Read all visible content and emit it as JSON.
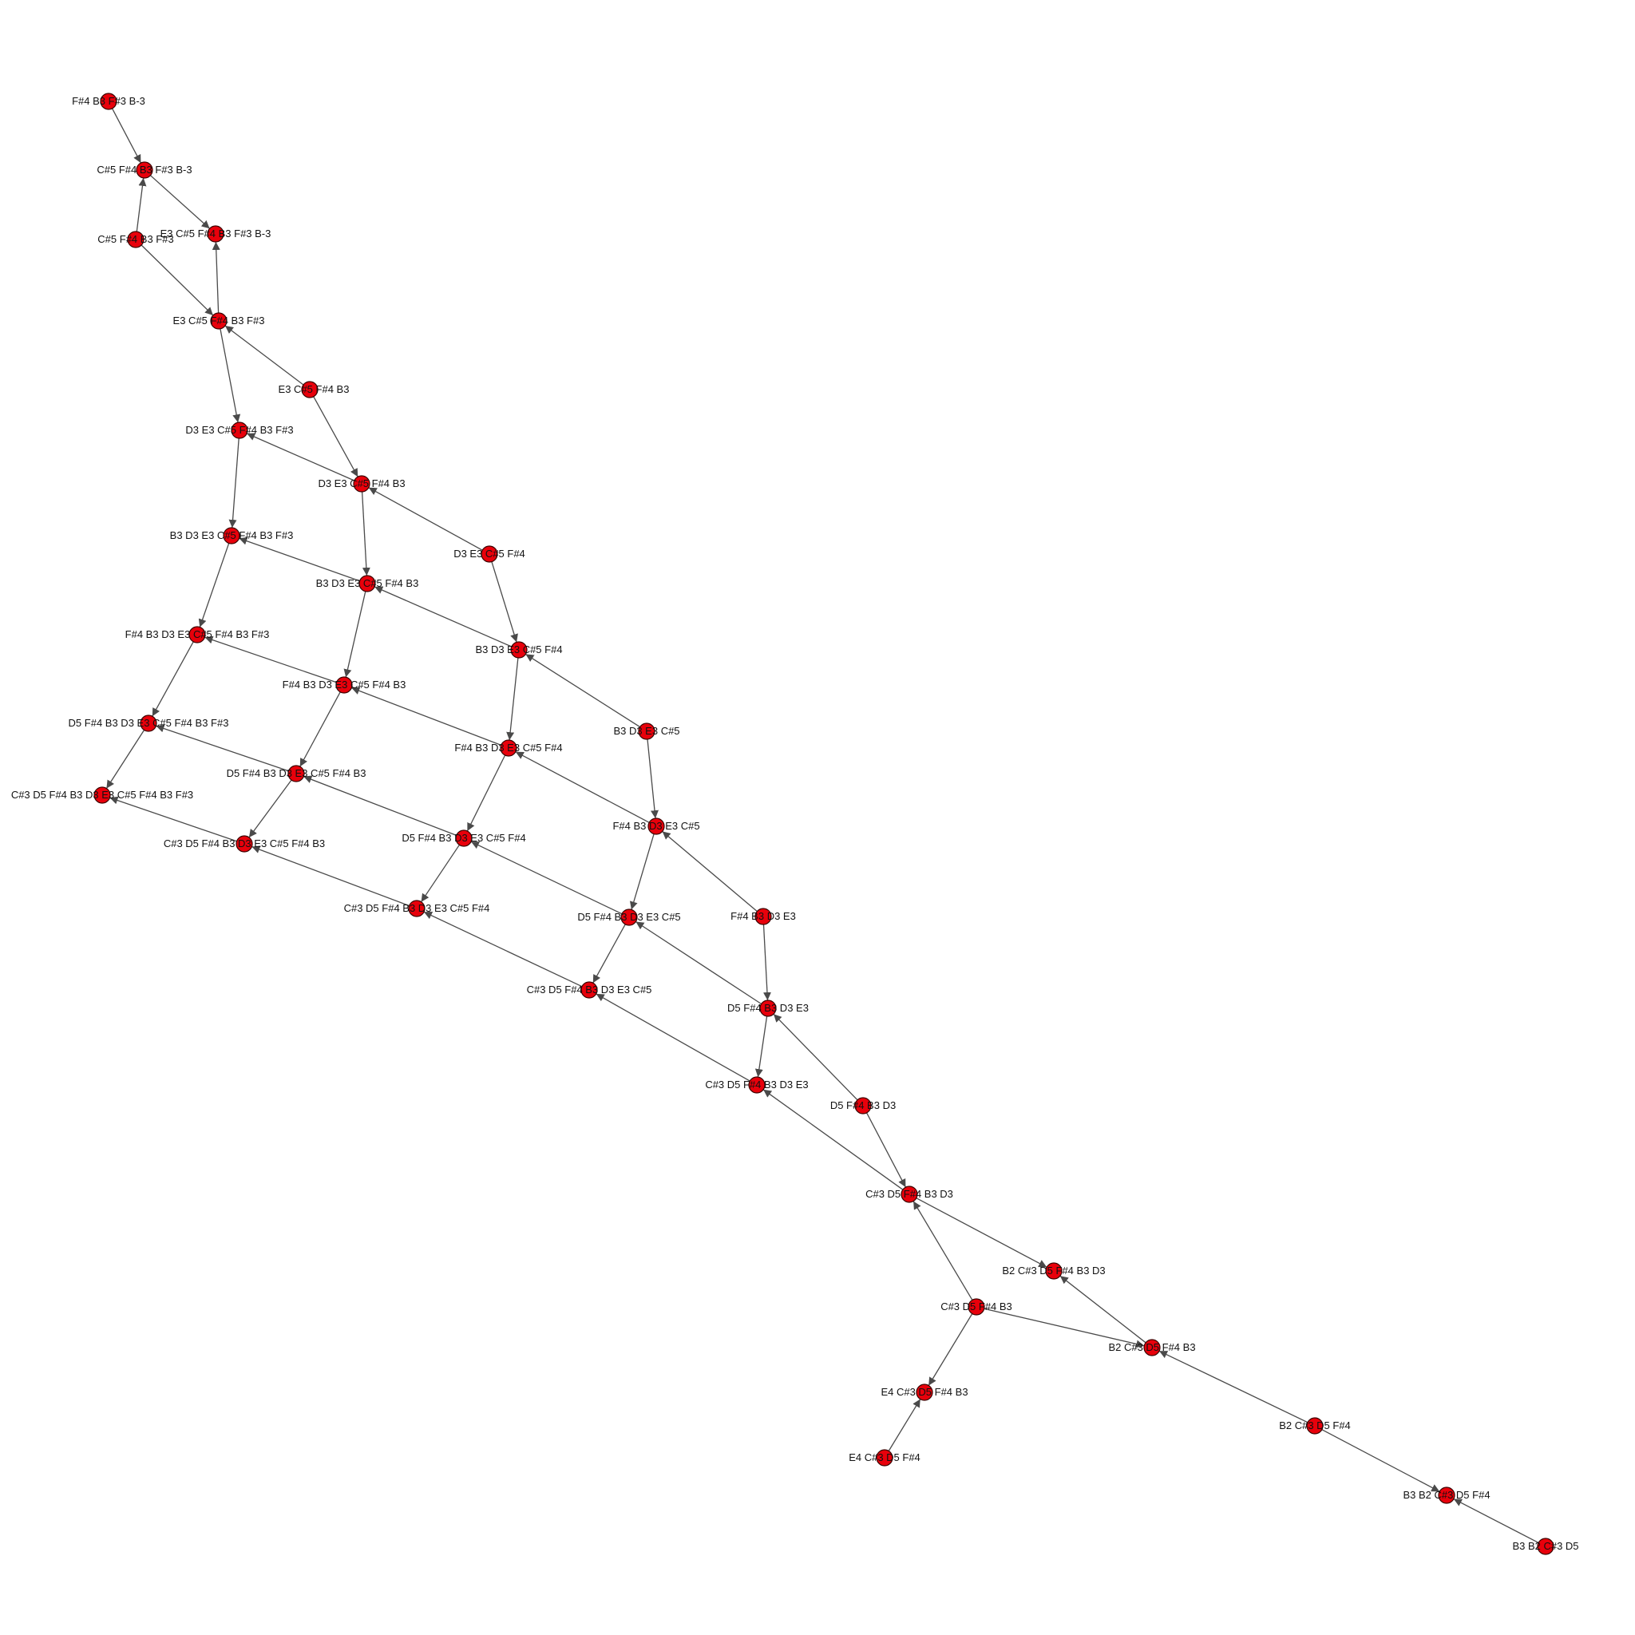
{
  "nodes": [
    {
      "id": 0,
      "label": "F#4 B3 F#3 B-3"
    },
    {
      "id": 1,
      "label": "C#5 F#4 B3 F#3 B-3"
    },
    {
      "id": 2,
      "label": "E3 C#5 F#4 B3 F#3 B-3"
    },
    {
      "id": 3,
      "label": "C#5 F#4 B3 F#3"
    },
    {
      "id": 4,
      "label": "E3 C#5 F#4 B3 F#3"
    },
    {
      "id": 5,
      "label": "E3 C#5 F#4 B3"
    },
    {
      "id": 6,
      "label": "D3 E3 C#5 F#4 B3 F#3"
    },
    {
      "id": 7,
      "label": "D3 E3 C#5 F#4 B3"
    },
    {
      "id": 8,
      "label": "D3 E3 C#5 F#4"
    },
    {
      "id": 9,
      "label": "B3 D3 E3 C#5 F#4 B3 F#3"
    },
    {
      "id": 10,
      "label": "B3 D3 E3 C#5 F#4 B3"
    },
    {
      "id": 11,
      "label": "B3 D3 E3 C#5 F#4"
    },
    {
      "id": 12,
      "label": "F#4 B3 D3 E3 C#5 F#4 B3 F#3"
    },
    {
      "id": 13,
      "label": "F#4 B3 D3 E3 C#5 F#4 B3"
    },
    {
      "id": 14,
      "label": "B3 D3 E3 C#5"
    },
    {
      "id": 15,
      "label": "F#4 B3 D3 E3 C#5 F#4"
    },
    {
      "id": 16,
      "label": "D5 F#4 B3 D3 E3 C#5 F#4 B3 F#3"
    },
    {
      "id": 17,
      "label": "D5 F#4 B3 D3 E3 C#5 F#4 B3"
    },
    {
      "id": 18,
      "label": "C#3 D5 F#4 B3 D3 E3 C#5 F#4 B3 F#3"
    },
    {
      "id": 19,
      "label": "F#4 B3 D3 E3 C#5"
    },
    {
      "id": 20,
      "label": "D5 F#4 B3 D3 E3 C#5 F#4"
    },
    {
      "id": 21,
      "label": "C#3 D5 F#4 B3 D3 E3 C#5 F#4 B3"
    },
    {
      "id": 22,
      "label": "F#4 B3 D3 E3"
    },
    {
      "id": 23,
      "label": "D5 F#4 B3 D3 E3 C#5"
    },
    {
      "id": 24,
      "label": "C#3 D5 F#4 B3 D3 E3 C#5 F#4"
    },
    {
      "id": 25,
      "label": "C#3 D5 F#4 B3 D3 E3 C#5"
    },
    {
      "id": 26,
      "label": "D5 F#4 B3 D3 E3"
    },
    {
      "id": 27,
      "label": "C#3 D5 F#4 B3 D3 E3"
    },
    {
      "id": 28,
      "label": "D5 F#4 B3 D3"
    },
    {
      "id": 29,
      "label": "C#3 D5 F#4 B3 D3"
    },
    {
      "id": 30,
      "label": "B2 C#3 D5 F#4 B3 D3"
    },
    {
      "id": 31,
      "label": "C#3 D5 F#4 B3"
    },
    {
      "id": 32,
      "label": "B2 C#3 D5 F#4 B3"
    },
    {
      "id": 33,
      "label": "E4 C#3 D5 F#4 B3"
    },
    {
      "id": 34,
      "label": "B2 C#3 D5 F#4"
    },
    {
      "id": 35,
      "label": "E4 C#3 D5 F#4"
    },
    {
      "id": 36,
      "label": "B3 B2 C#3 D5 F#4"
    },
    {
      "id": 37,
      "label": "B3 B2 C#3 D5"
    }
  ],
  "edges": [
    [
      0,
      1
    ],
    [
      1,
      2
    ],
    [
      3,
      1
    ],
    [
      3,
      4
    ],
    [
      4,
      2
    ],
    [
      5,
      4
    ],
    [
      4,
      6
    ],
    [
      5,
      7
    ],
    [
      7,
      6
    ],
    [
      6,
      9
    ],
    [
      7,
      10
    ],
    [
      8,
      7
    ],
    [
      8,
      11
    ],
    [
      10,
      9
    ],
    [
      9,
      12
    ],
    [
      11,
      10
    ],
    [
      10,
      13
    ],
    [
      14,
      11
    ],
    [
      11,
      15
    ],
    [
      13,
      12
    ],
    [
      12,
      16
    ],
    [
      13,
      17
    ],
    [
      15,
      13
    ],
    [
      15,
      20
    ],
    [
      14,
      19
    ],
    [
      16,
      18
    ],
    [
      17,
      16
    ],
    [
      17,
      21
    ],
    [
      20,
      17
    ],
    [
      21,
      18
    ],
    [
      19,
      15
    ],
    [
      19,
      23
    ],
    [
      20,
      24
    ],
    [
      23,
      20
    ],
    [
      24,
      21
    ],
    [
      22,
      19
    ],
    [
      22,
      26
    ],
    [
      23,
      25
    ],
    [
      25,
      24
    ],
    [
      26,
      23
    ],
    [
      26,
      27
    ],
    [
      27,
      25
    ],
    [
      28,
      26
    ],
    [
      28,
      29
    ],
    [
      29,
      27
    ],
    [
      29,
      30
    ],
    [
      31,
      29
    ],
    [
      31,
      33
    ],
    [
      31,
      32
    ],
    [
      32,
      30
    ],
    [
      34,
      32
    ],
    [
      34,
      36
    ],
    [
      35,
      33
    ],
    [
      37,
      36
    ]
  ]
}
